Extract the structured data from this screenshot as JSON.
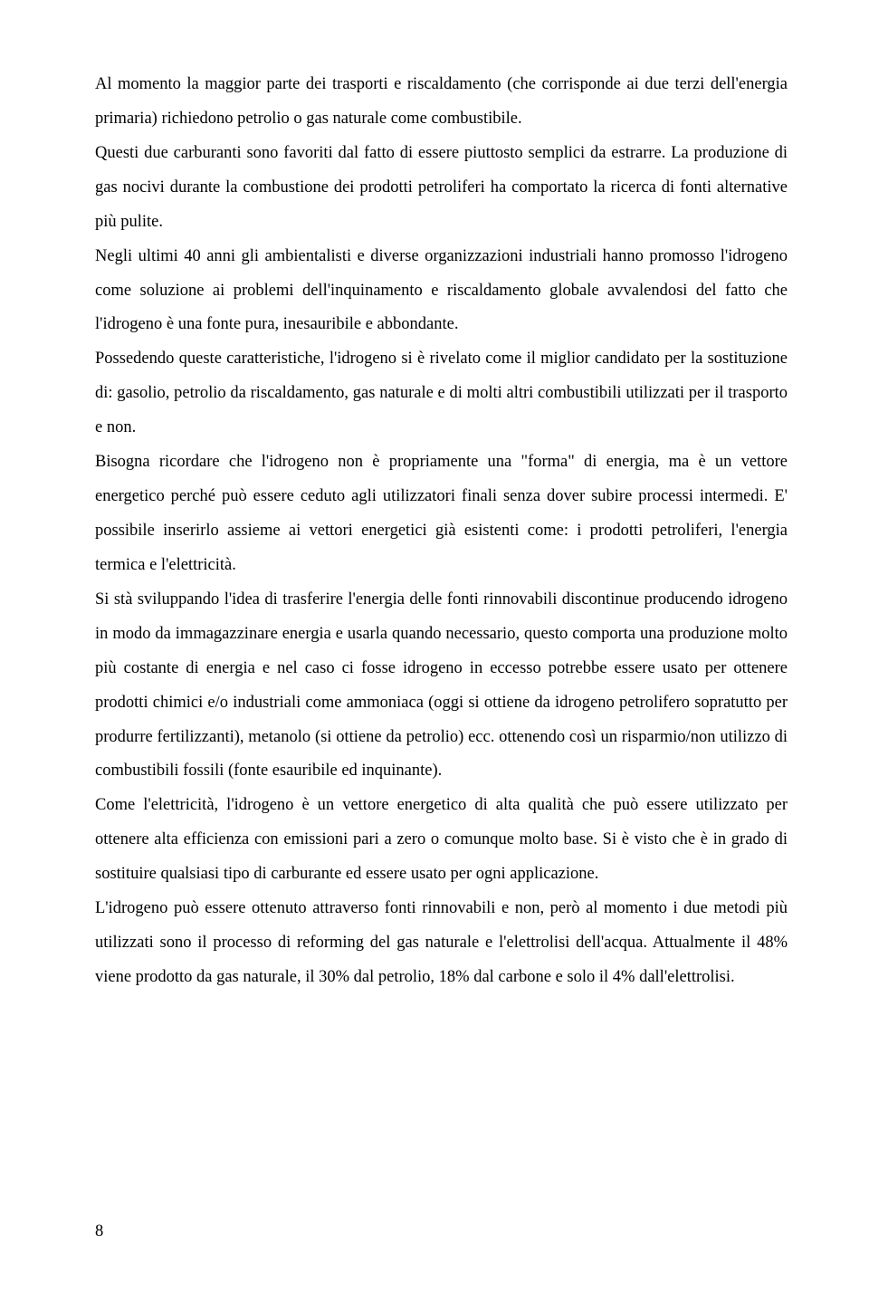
{
  "document": {
    "page_number": "8",
    "paragraphs": [
      "Al momento la maggior parte dei trasporti e riscaldamento (che corrisponde ai due terzi dell'energia primaria) richiedono petrolio o gas naturale come combustibile.",
      "Questi due carburanti sono favoriti dal fatto di essere piuttosto semplici da estrarre. La produzione di gas nocivi durante la combustione dei prodotti petroliferi ha comportato la ricerca di fonti alternative più pulite.",
      "Negli ultimi 40 anni gli ambientalisti e diverse organizzazioni industriali hanno promosso l'idrogeno come soluzione ai problemi dell'inquinamento e riscaldamento globale avvalendosi del fatto che l'idrogeno è una fonte pura, inesauribile e abbondante.",
      "Possedendo queste caratteristiche, l'idrogeno si è rivelato come il miglior candidato per la sostituzione di: gasolio, petrolio da riscaldamento, gas naturale e di molti altri combustibili utilizzati per il trasporto e non.",
      "Bisogna ricordare che l'idrogeno non è propriamente una \"forma\" di energia, ma è un vettore energetico perché può essere ceduto agli utilizzatori finali senza dover subire processi intermedi. E' possibile inserirlo assieme ai vettori energetici già esistenti come: i prodotti petroliferi, l'energia termica e l'elettricità.",
      "Si stà sviluppando l'idea di trasferire l'energia delle fonti rinnovabili discontinue producendo idrogeno in modo da immagazzinare energia e usarla quando necessario, questo comporta una produzione molto più costante di energia e nel caso ci fosse idrogeno in eccesso potrebbe essere usato per ottenere prodotti chimici e/o industriali come ammoniaca (oggi si ottiene da idrogeno petrolifero sopratutto per produrre fertilizzanti), metanolo (si ottiene da petrolio) ecc. ottenendo così un risparmio/non utilizzo di combustibili fossili (fonte esauribile ed inquinante).",
      "Come l'elettricità, l'idrogeno è un vettore energetico di alta qualità che può essere utilizzato per ottenere alta efficienza con emissioni pari a zero o comunque molto base. Si è visto che è in grado di sostituire qualsiasi tipo di carburante ed essere usato per ogni applicazione.",
      "L'idrogeno può essere ottenuto attraverso fonti rinnovabili e non, però al momento i due metodi più utilizzati sono il processo di reforming del gas naturale e l'elettrolisi dell'acqua. Attualmente il 48% viene prodotto da gas naturale, il 30% dal petrolio, 18% dal carbone e solo il 4% dall'elettrolisi."
    ],
    "font_family": "Times New Roman",
    "font_size_pt": 12,
    "line_height": 2.05,
    "text_color": "#000000",
    "background_color": "#ffffff",
    "text_align": "justify"
  }
}
